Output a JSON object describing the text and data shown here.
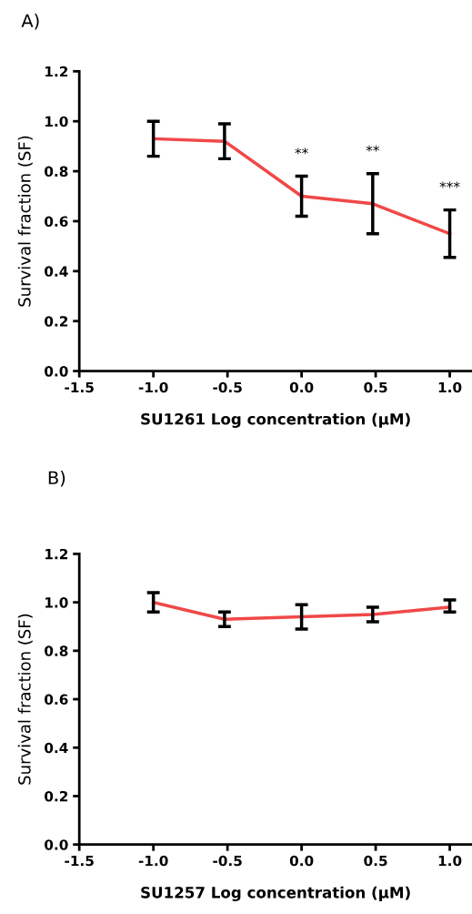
{
  "chart_data": [
    {
      "type": "line",
      "title": "A)",
      "xlabel": "SU1261 Log concentration (µM)",
      "ylabel": "Survival fraction (SF)",
      "x": [
        -1.0,
        -0.52,
        0.0,
        0.48,
        1.0
      ],
      "series": [
        {
          "color": "#f04848",
          "values": [
            0.93,
            0.92,
            0.7,
            0.67,
            0.55
          ],
          "errors": [
            [
              0.86,
              1.0
            ],
            [
              0.85,
              0.99
            ],
            [
              0.62,
              0.78
            ],
            [
              0.55,
              0.79
            ],
            [
              0.455,
              0.645
            ]
          ]
        }
      ],
      "xlim": [
        -1.5,
        1.15
      ],
      "xticks": [
        {
          "value": -1.5,
          "label": "-1.5"
        },
        {
          "value": -1.0,
          "label": "-1.0"
        },
        {
          "value": -0.5,
          "label": "-0.5"
        },
        {
          "value": 0.0,
          "label": "0.0"
        },
        {
          "value": 0.5,
          "label": "0.5"
        },
        {
          "value": 1.0,
          "label": "1.0"
        }
      ],
      "ylim": [
        0,
        1.2
      ],
      "yticks": [
        {
          "value": 0,
          "label": "0.0"
        },
        {
          "value": 0.2,
          "label": "0.2"
        },
        {
          "value": 0.4,
          "label": "0.4"
        },
        {
          "value": 0.6,
          "label": "0.6"
        },
        {
          "value": 0.8,
          "label": "0.8"
        },
        {
          "value": 1.0,
          "label": "1.0"
        },
        {
          "value": 1.2,
          "label": "1.2"
        }
      ],
      "annotations": [
        {
          "text": "**",
          "x": 0.0,
          "y": 0.78
        },
        {
          "text": "**",
          "x": 0.48,
          "y": 0.79
        },
        {
          "text": "***",
          "x": 1.0,
          "y": 0.645
        }
      ],
      "grid": false,
      "legend": false,
      "marker": "none",
      "line_style": "solid"
    },
    {
      "type": "line",
      "title": "B)",
      "xlabel": "SU1257 Log concentration (µM)",
      "ylabel": "Survival fraction (SF)",
      "x": [
        -1.0,
        -0.52,
        0.0,
        0.48,
        1.0
      ],
      "series": [
        {
          "color": "#f04848",
          "values": [
            1.0,
            0.93,
            0.94,
            0.95,
            0.98
          ],
          "errors": [
            [
              0.96,
              1.04
            ],
            [
              0.9,
              0.96
            ],
            [
              0.89,
              0.99
            ],
            [
              0.92,
              0.98
            ],
            [
              0.96,
              1.01
            ]
          ]
        }
      ],
      "xlim": [
        -1.5,
        1.15
      ],
      "xticks": [
        {
          "value": -1.5,
          "label": "-1.5"
        },
        {
          "value": -1.0,
          "label": "-1.0"
        },
        {
          "value": -0.5,
          "label": "-0.5"
        },
        {
          "value": 0.0,
          "label": "0.0"
        },
        {
          "value": 0.5,
          "label": "0.5"
        },
        {
          "value": 1.0,
          "label": "1.0"
        }
      ],
      "ylim": [
        0,
        1.2
      ],
      "yticks": [
        {
          "value": 0,
          "label": "0.0"
        },
        {
          "value": 0.2,
          "label": "0.2"
        },
        {
          "value": 0.4,
          "label": "0.4"
        },
        {
          "value": 0.6,
          "label": "0.6"
        },
        {
          "value": 0.8,
          "label": "0.8"
        },
        {
          "value": 1.0,
          "label": "1.0"
        },
        {
          "value": 1.2,
          "label": "1.2"
        }
      ],
      "grid": false,
      "legend": false,
      "marker": "none",
      "line_style": "solid"
    }
  ]
}
